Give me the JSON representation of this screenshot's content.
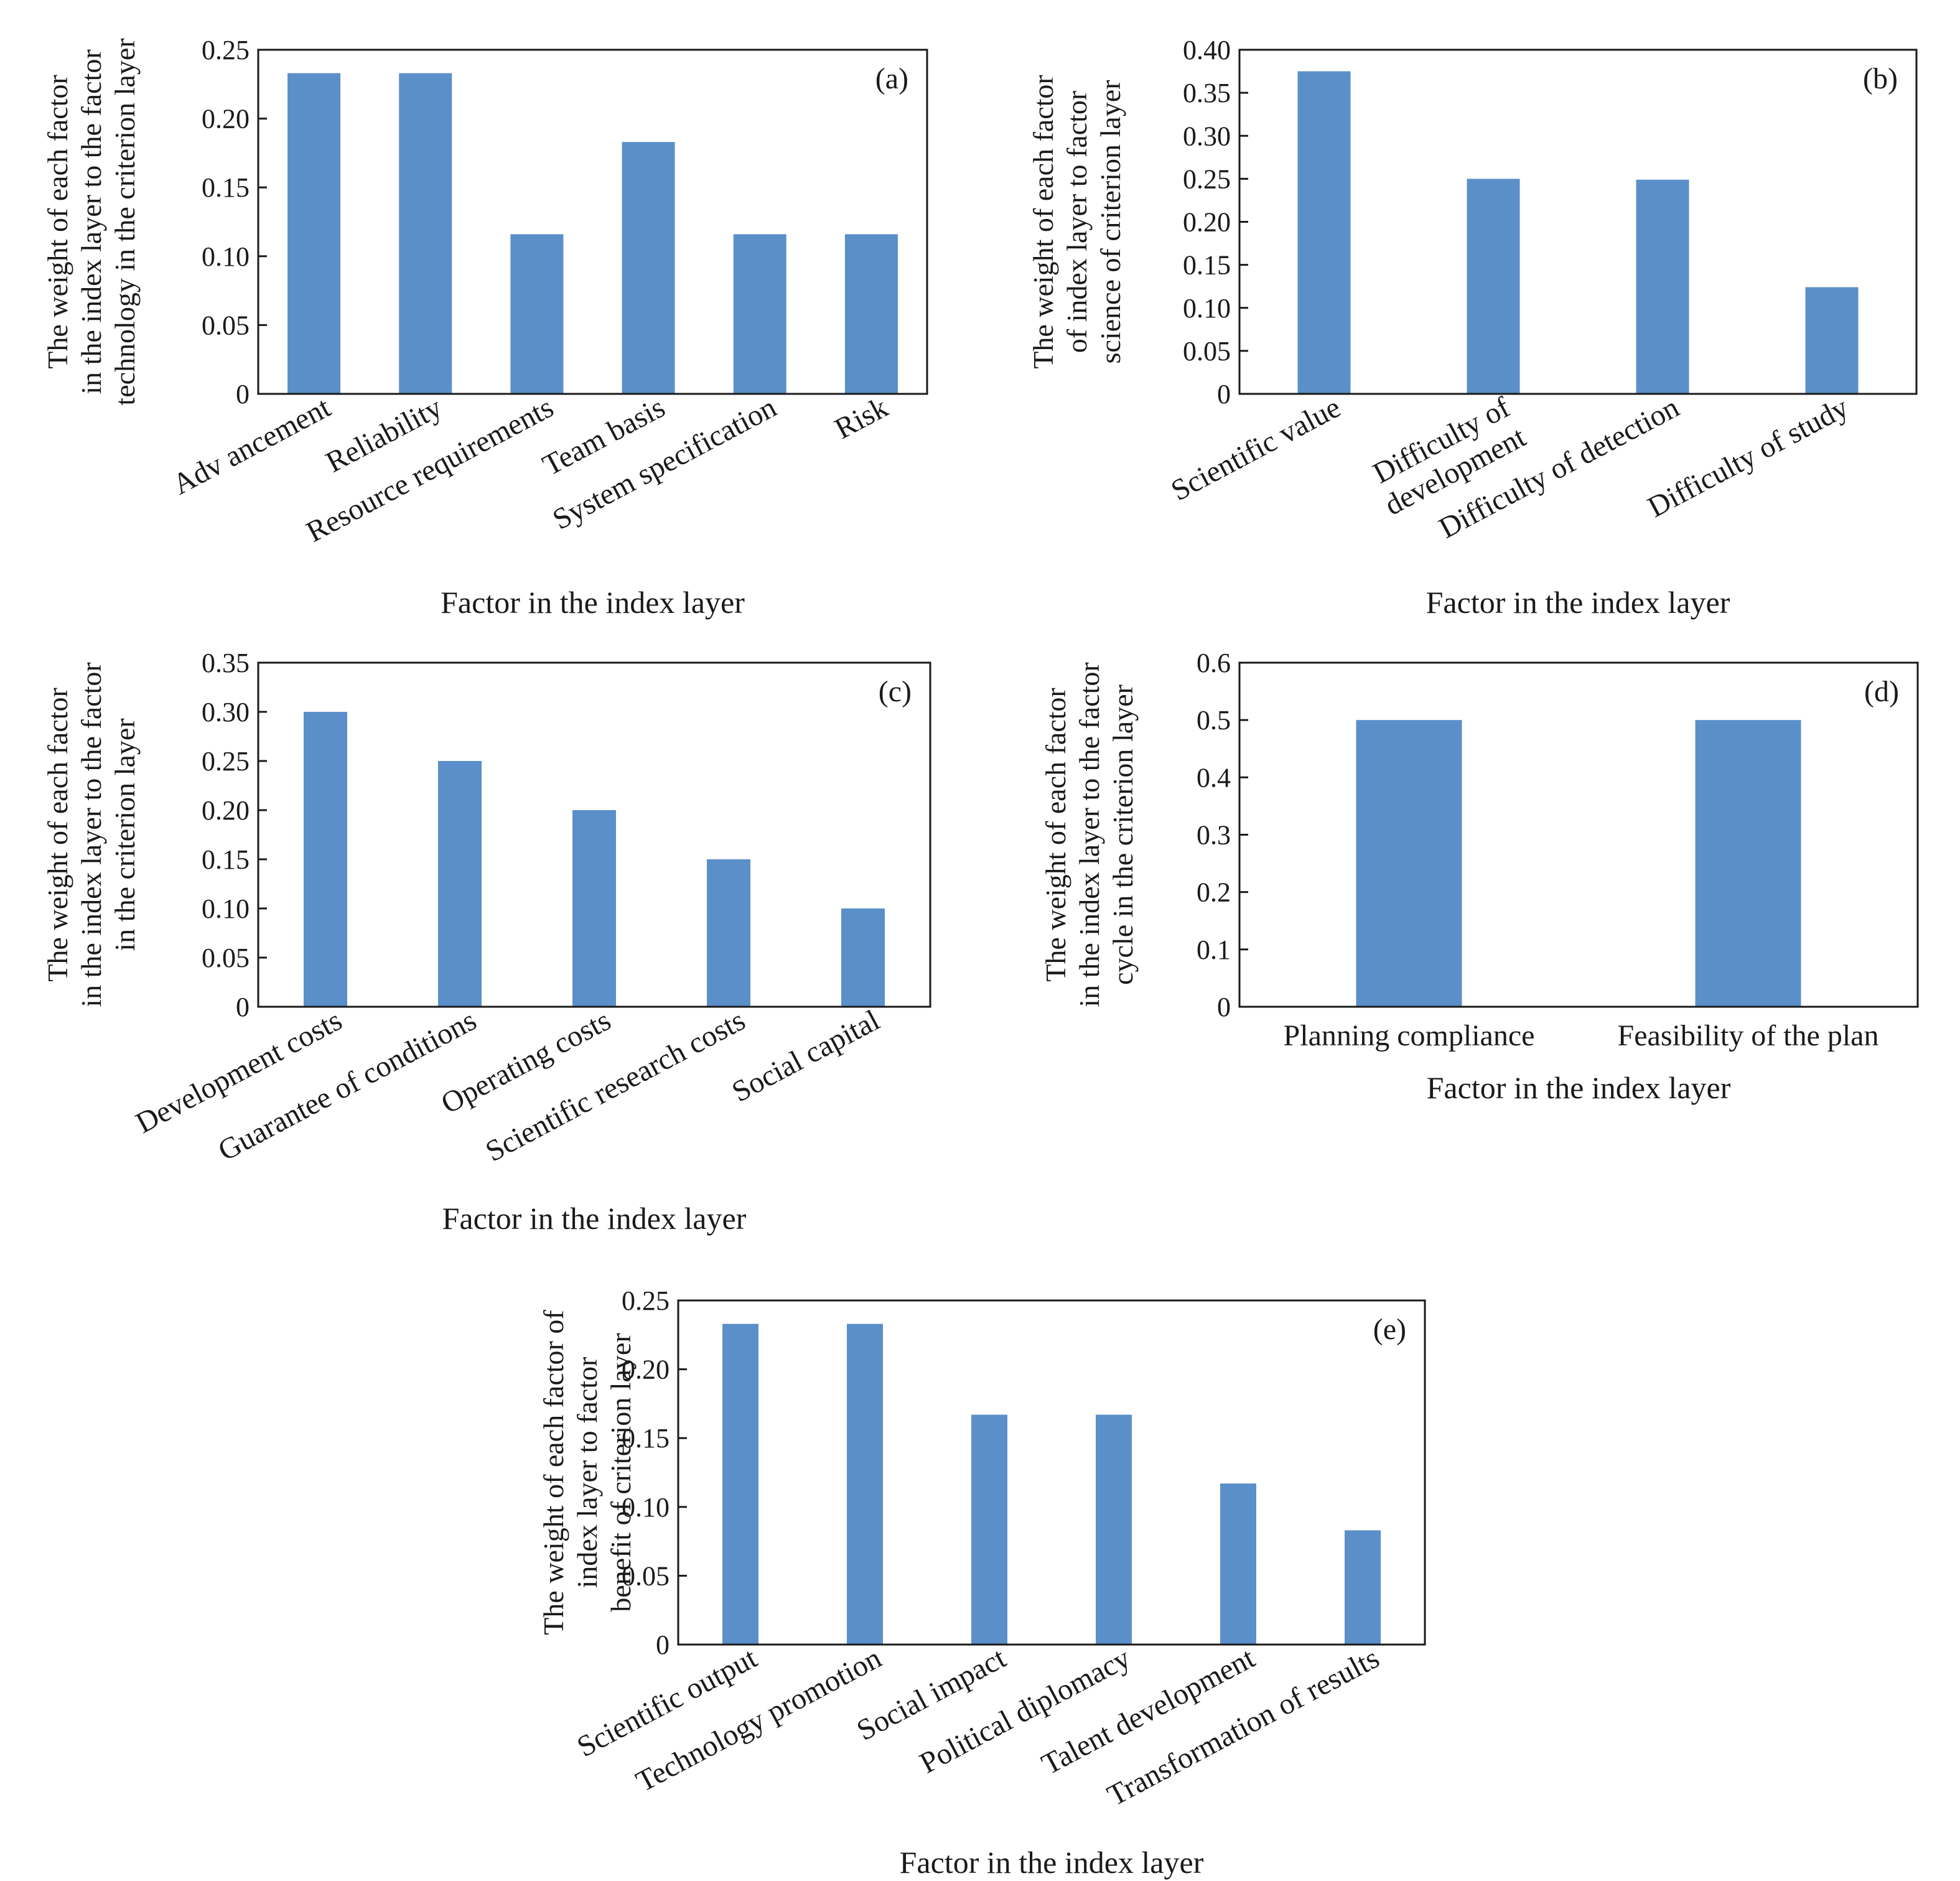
{
  "bar_color": "#5b8fc9",
  "chart_data": [
    {
      "type": "bar",
      "panel": "(a)",
      "categories": [
        "Adv ancement",
        "Reliability",
        "Resource requirements",
        "Team basis",
        "System specification",
        "Risk"
      ],
      "values": [
        0.233,
        0.233,
        0.116,
        0.183,
        0.116,
        0.116
      ],
      "ylim": [
        0,
        0.25
      ],
      "yticks": [
        "0",
        "0.05",
        "0.10",
        "0.15",
        "0.20",
        "0.25"
      ],
      "ylabel_lines": [
        "The weight of each factor",
        "in the index layer to the factor",
        "technology in the criterion layer"
      ],
      "xlabel": "Factor in the index layer",
      "grid": false
    },
    {
      "type": "bar",
      "panel": "(b)",
      "categories": [
        "Scientific value",
        "Difficulty of\ndevelopment",
        "Difficulty of detection",
        "Difficulty of study"
      ],
      "values": [
        0.375,
        0.25,
        0.249,
        0.124
      ],
      "ylim": [
        0,
        0.4
      ],
      "yticks": [
        "0",
        "0.05",
        "0.10",
        "0.15",
        "0.20",
        "0.25",
        "0.30",
        "0.35",
        "0.40"
      ],
      "ylabel_lines": [
        "The weight of each factor",
        "of index layer to factor",
        "science of criterion layer"
      ],
      "xlabel": "Factor in the index layer",
      "grid": false
    },
    {
      "type": "bar",
      "panel": "(c)",
      "categories": [
        "Development costs",
        "Guarantee of conditions",
        "Operating costs",
        "Scientific research costs",
        "Social capital"
      ],
      "values": [
        0.3,
        0.25,
        0.2,
        0.15,
        0.1
      ],
      "ylim": [
        0,
        0.35
      ],
      "yticks": [
        "0",
        "0.05",
        "0.10",
        "0.15",
        "0.20",
        "0.25",
        "0.30",
        "0.35"
      ],
      "ylabel_lines": [
        "The weight of each factor",
        "in the index layer to the factor",
        "in the criterion layer"
      ],
      "xlabel": "Factor in the index layer",
      "grid": false
    },
    {
      "type": "bar",
      "panel": "(d)",
      "categories": [
        "Planning compliance",
        "Feasibility of the plan"
      ],
      "values": [
        0.5,
        0.5
      ],
      "ylim": [
        0,
        0.6
      ],
      "yticks": [
        "0",
        "0.1",
        "0.2",
        "0.3",
        "0.4",
        "0.5",
        "0.6"
      ],
      "ylabel_lines": [
        "The weight of each factor",
        "in the index layer to the factor",
        "cycle in the criterion layer"
      ],
      "xlabel": "Factor in the index layer",
      "grid": false
    },
    {
      "type": "bar",
      "panel": "(e)",
      "categories": [
        "Scientific output",
        "Technology promotion",
        "Social impact",
        "Political diplomacy",
        "Talent development",
        "Transformation of results"
      ],
      "values": [
        0.233,
        0.233,
        0.167,
        0.167,
        0.117,
        0.083
      ],
      "ylim": [
        0,
        0.25
      ],
      "yticks": [
        "0",
        "0.05",
        "0.10",
        "0.15",
        "0.20",
        "0.25"
      ],
      "ylabel_lines": [
        "The weight of each factor of",
        "index layer to factor",
        "benefit of criterion layer"
      ],
      "xlabel": "Factor in the index layer",
      "grid": false
    }
  ]
}
